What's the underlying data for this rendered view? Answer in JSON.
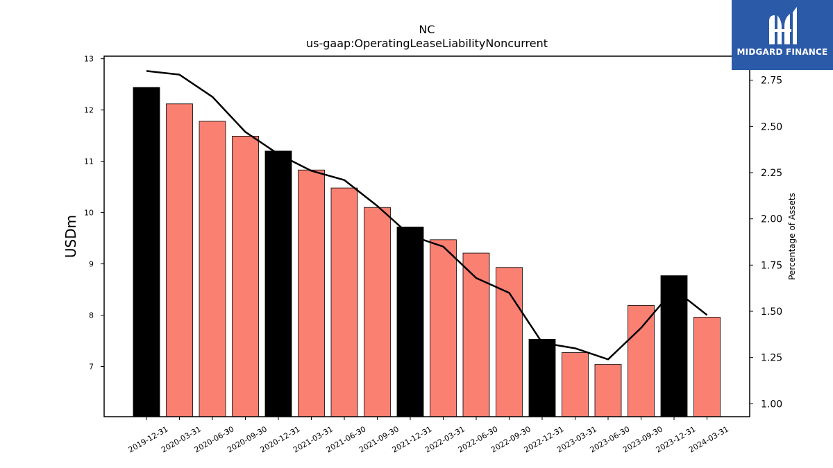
{
  "brand": {
    "name": "MIDGARD FINANCE",
    "logo_icon": "midgard-m-logo-icon",
    "background": "#2b5aa8"
  },
  "chart_data": {
    "type": "bar",
    "title": "NC",
    "subtitle": "us-gaap:OperatingLeaseLiabilityNoncurrent",
    "ylabel": "USDm",
    "y2label": "Percentage of Assets",
    "ylim": [
      6.02,
      13.05
    ],
    "y2lim": [
      0.93,
      2.88
    ],
    "yticks": [
      7,
      8,
      9,
      10,
      11,
      12,
      13
    ],
    "y2ticks": [
      "1.00",
      "1.25",
      "1.50",
      "1.75",
      "2.00",
      "2.25",
      "2.50",
      "2.75"
    ],
    "categories": [
      "2019-12-31",
      "2020-03-31",
      "2020-06-30",
      "2020-09-30",
      "2020-12-31",
      "2021-03-31",
      "2021-06-30",
      "2021-09-30",
      "2021-12-31",
      "2022-03-31",
      "2022-06-30",
      "2022-09-30",
      "2022-12-31",
      "2023-03-31",
      "2023-06-30",
      "2023-09-30",
      "2023-12-31",
      "2024-03-31"
    ],
    "series": [
      {
        "type": "bar",
        "axis": "left",
        "values": [
          12.44,
          12.12,
          11.78,
          11.49,
          11.2,
          10.83,
          10.48,
          10.1,
          9.72,
          9.47,
          9.21,
          8.93,
          7.53,
          7.27,
          7.04,
          8.19,
          8.77,
          7.96
        ],
        "colors": [
          "#000000",
          "#fa8072",
          "#fa8072",
          "#fa8072",
          "#000000",
          "#fa8072",
          "#fa8072",
          "#fa8072",
          "#000000",
          "#fa8072",
          "#fa8072",
          "#fa8072",
          "#000000",
          "#fa8072",
          "#fa8072",
          "#fa8072",
          "#000000",
          "#fa8072"
        ]
      },
      {
        "type": "line",
        "axis": "right",
        "color": "#000000",
        "values": [
          2.8,
          2.78,
          2.66,
          2.47,
          2.35,
          2.26,
          2.21,
          2.07,
          1.91,
          1.85,
          1.68,
          1.6,
          1.33,
          1.3,
          1.24,
          1.41,
          1.62,
          1.48
        ]
      }
    ],
    "grid": false,
    "legend": "none"
  }
}
